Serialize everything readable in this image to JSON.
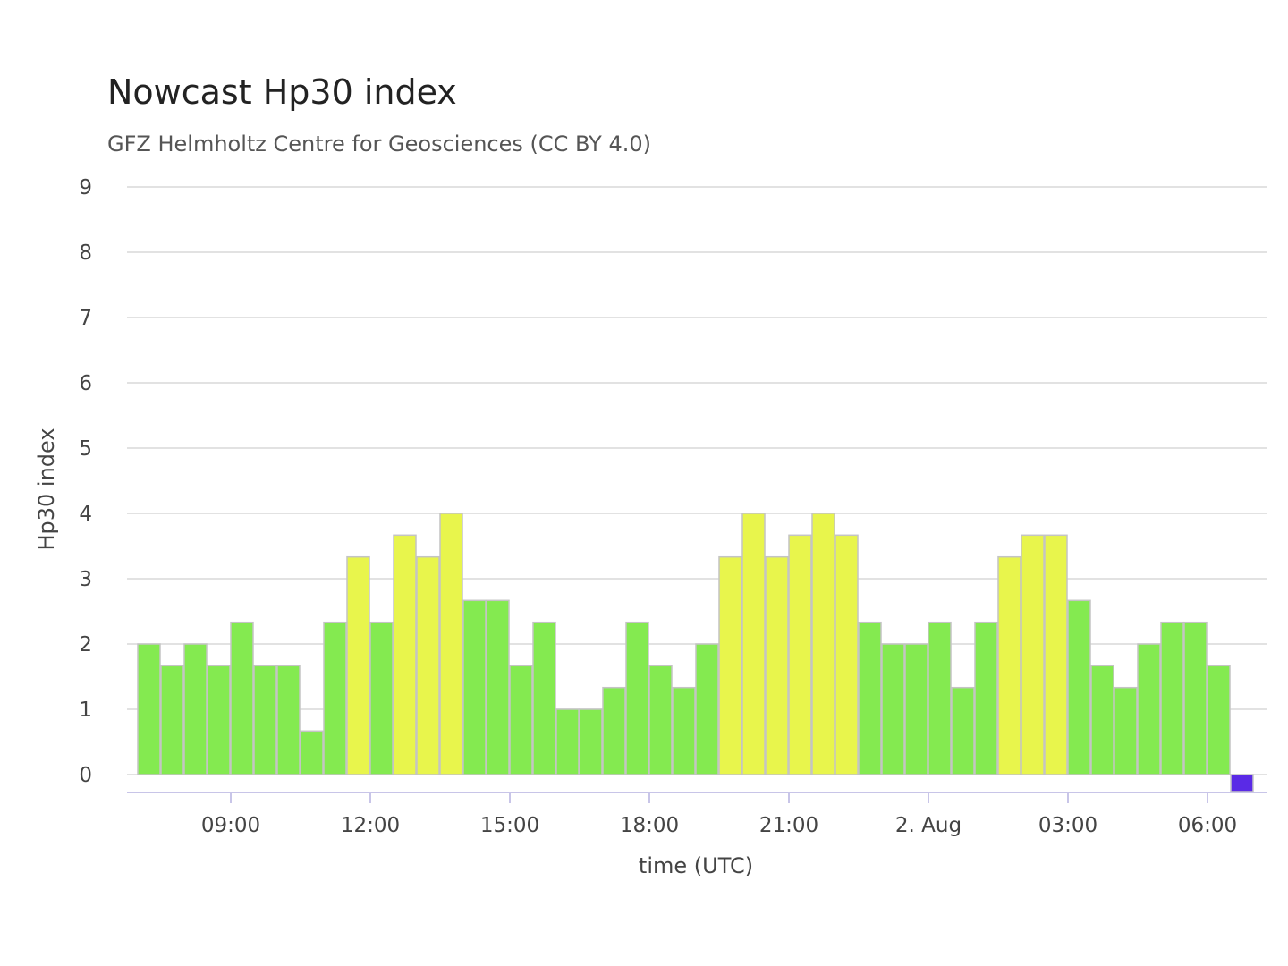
{
  "chart_data": {
    "type": "bar",
    "title": "Nowcast Hp30 index",
    "subtitle": "GFZ Helmholtz Centre for Geosciences (CC BY 4.0)",
    "xlabel": "time (UTC)",
    "ylabel": "Hp30 index",
    "ylim": [
      0,
      9
    ],
    "yticks": [
      "0",
      "1",
      "2",
      "3",
      "4",
      "5",
      "6",
      "7",
      "8",
      "9"
    ],
    "xticks": [
      "09:00",
      "12:00",
      "15:00",
      "18:00",
      "21:00",
      "2. Aug",
      "03:00",
      "06:00"
    ],
    "grid": true,
    "legend": "none",
    "colors": {
      "low": "#84ea50",
      "moderate": "#e8f54c",
      "missing": "#5a2ae6"
    },
    "values": [
      2.0,
      1.667,
      2.0,
      1.667,
      2.333,
      1.667,
      1.667,
      0.667,
      2.333,
      3.333,
      2.333,
      3.667,
      3.333,
      4.0,
      2.667,
      2.667,
      1.667,
      2.333,
      1.0,
      1.0,
      1.333,
      2.333,
      1.667,
      1.333,
      2.0,
      3.333,
      4.0,
      3.333,
      3.667,
      4.0,
      3.667,
      2.333,
      2.0,
      2.0,
      2.333,
      1.333,
      2.333,
      3.333,
      3.667,
      3.667,
      2.667,
      1.667,
      1.333,
      2.0,
      2.333,
      2.333,
      1.667,
      0
    ]
  }
}
